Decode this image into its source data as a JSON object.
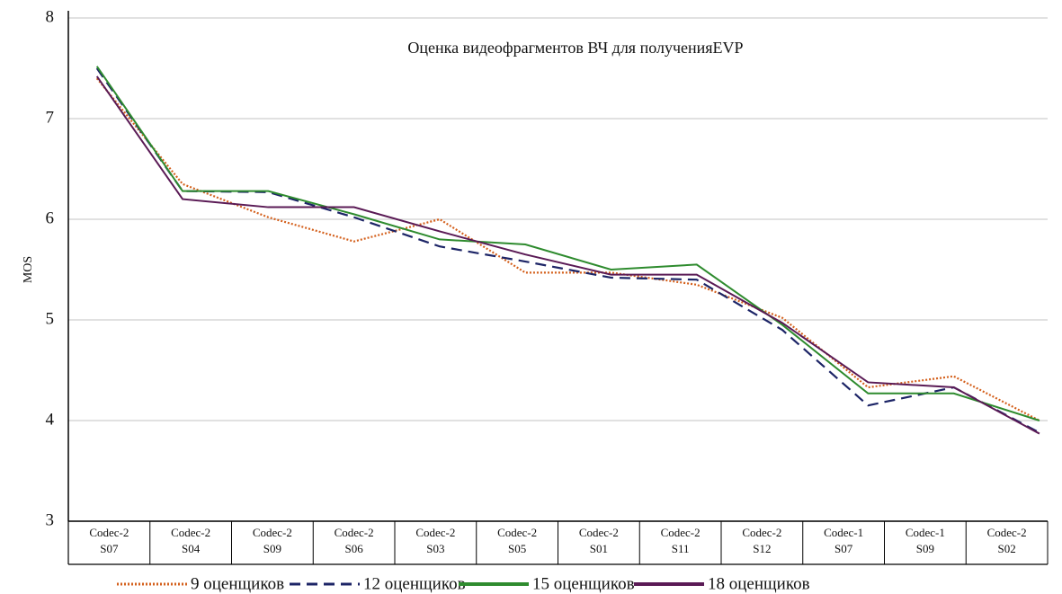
{
  "chart_data": {
    "type": "line",
    "title": "Оценка видеофрагментов ВЧ для полученияEVP",
    "y_label": "MOS",
    "categories": [
      "Codec-2\nS07",
      "Codec-2\nS04",
      "Codec-2\nS09",
      "Codec-2\nS06",
      "Codec-2\nS03",
      "Codec-2\nS05",
      "Codec-2\nS01",
      "Codec-2\nS11",
      "Codec-2\nS12",
      "Codec-1\nS07",
      "Codec-1\nS09",
      "Codec-2\nS02"
    ],
    "series": [
      {
        "name": "9 оценщиков",
        "color": "#d4601c",
        "style": "dotted",
        "values": [
          7.4,
          6.35,
          6.02,
          5.78,
          6.0,
          5.47,
          5.47,
          5.35,
          5.02,
          4.33,
          4.44,
          4.0
        ]
      },
      {
        "name": "12 оценщиков",
        "color": "#1c2466",
        "style": "dashed",
        "values": [
          7.5,
          6.28,
          6.27,
          6.02,
          5.73,
          5.58,
          5.42,
          5.4,
          4.9,
          4.15,
          4.33,
          3.88
        ]
      },
      {
        "name": "15 оценщиков",
        "color": "#2e8b2e",
        "style": "solid",
        "values": [
          7.52,
          6.28,
          6.28,
          6.05,
          5.8,
          5.75,
          5.5,
          5.55,
          4.95,
          4.27,
          4.27,
          4.0
        ]
      },
      {
        "name": "18 оценщиков",
        "color": "#5a1a55",
        "style": "solid",
        "values": [
          7.42,
          6.2,
          6.12,
          6.12,
          5.88,
          5.65,
          5.45,
          5.45,
          4.97,
          4.38,
          4.33,
          3.87
        ]
      }
    ],
    "ylim": [
      3,
      8
    ],
    "yticks": [
      3,
      4,
      5,
      6,
      7,
      8
    ],
    "grid": true
  }
}
